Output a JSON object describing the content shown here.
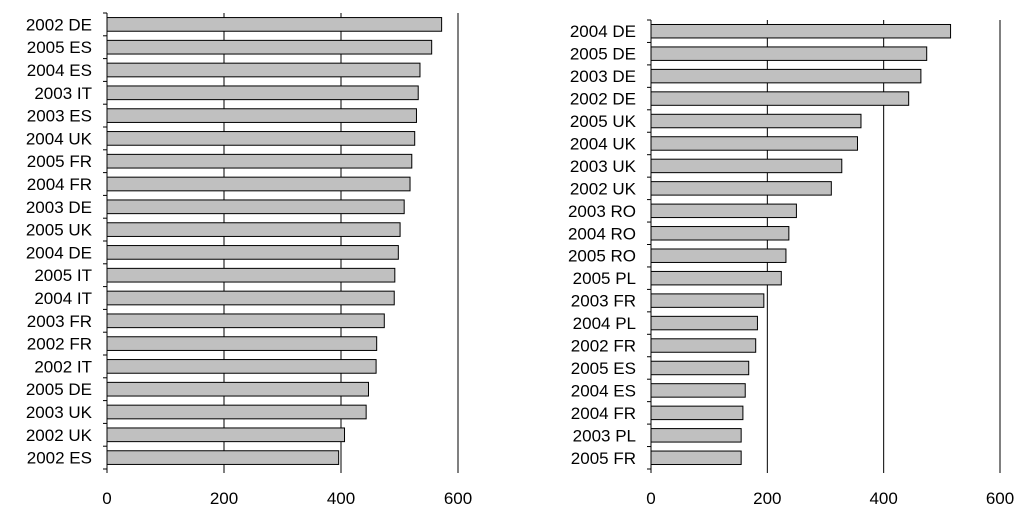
{
  "chart_data": [
    {
      "type": "bar",
      "orientation": "horizontal",
      "categories": [
        "2002 DE",
        "2005 ES",
        "2004 ES",
        "2003 IT",
        "2003 ES",
        "2004 UK",
        "2005 FR",
        "2004 FR",
        "2003 DE",
        "2005 UK",
        "2004 DE",
        "2005 IT",
        "2004 IT",
        "2003 FR",
        "2002 FR",
        "2002 IT",
        "2005 DE",
        "2003 UK",
        "2002 UK",
        "2002 ES"
      ],
      "values": [
        572,
        555,
        535,
        532,
        529,
        526,
        521,
        518,
        508,
        501,
        498,
        492,
        491,
        474,
        461,
        460,
        447,
        443,
        406,
        396
      ],
      "xlim": [
        0,
        600
      ],
      "xticks": [
        0,
        200,
        400,
        600
      ],
      "grid": "vertical",
      "bar_color": "#c0c0c0"
    },
    {
      "type": "bar",
      "orientation": "horizontal",
      "categories": [
        "2004 DE",
        "2005 DE",
        "2003 DE",
        "2002 DE",
        "2005 UK",
        "2004 UK",
        "2003 UK",
        "2002 UK",
        "2003 RO",
        "2004 RO",
        "2005 RO",
        "2005 PL",
        "2003 FR",
        "2004 PL",
        "2002 FR",
        "2005 ES",
        "2004 ES",
        "2004 FR",
        "2003 PL",
        "2005 FR"
      ],
      "values": [
        515,
        474,
        464,
        443,
        361,
        355,
        328,
        310,
        250,
        237,
        232,
        224,
        194,
        183,
        180,
        168,
        162,
        158,
        155,
        155
      ],
      "xlim": [
        0,
        600
      ],
      "xticks": [
        0,
        200,
        400,
        600
      ],
      "grid": "vertical",
      "bar_color": "#c0c0c0"
    }
  ]
}
